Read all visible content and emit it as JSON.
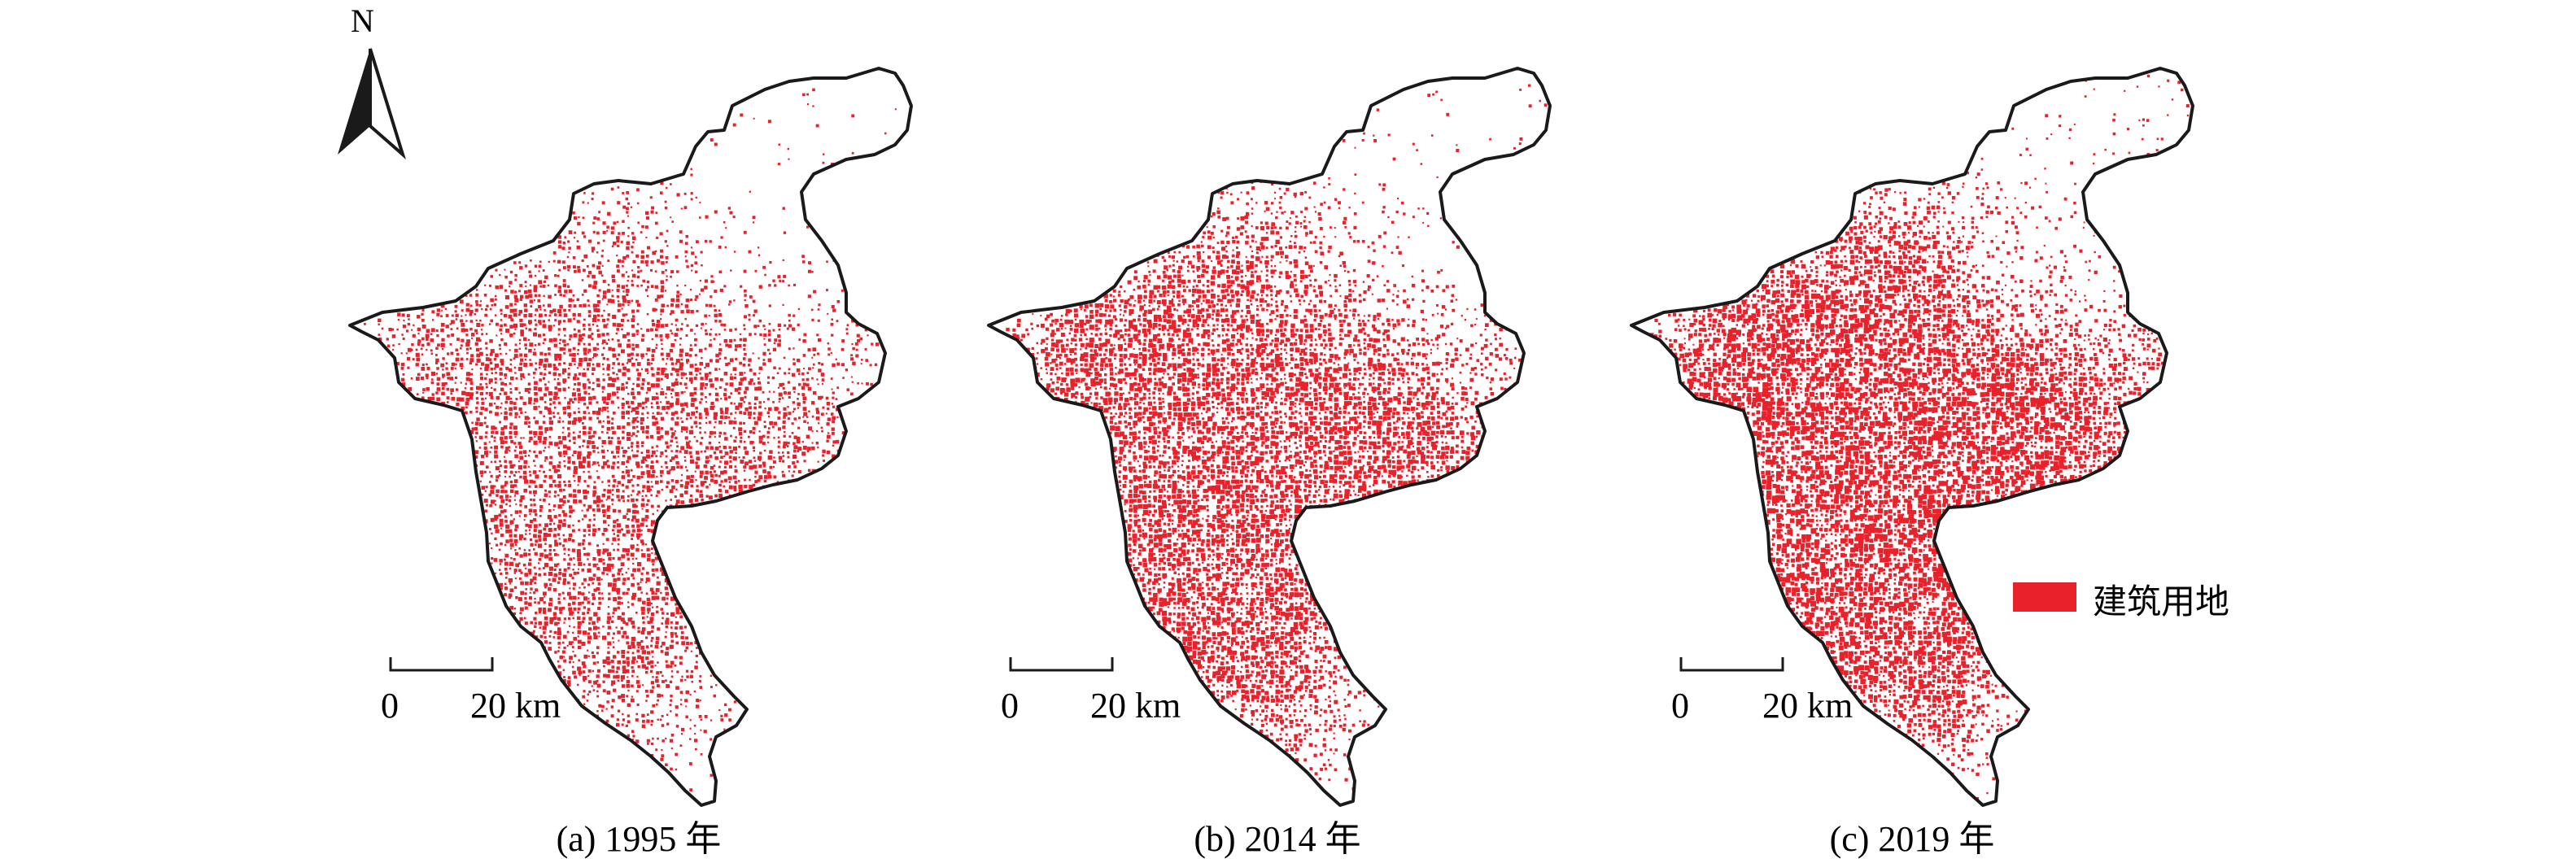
{
  "figure": {
    "north_arrow": {
      "label": "N",
      "icon": "north-arrow-icon"
    },
    "accent_color": "#e8212b",
    "outline_color": "#1a1a1a",
    "legend": {
      "label": "建筑用地",
      "color": "#e8212b"
    },
    "scale_bar": {
      "start": "0",
      "end": "20 km"
    },
    "panels": [
      {
        "id": "a",
        "caption": "(a) 1995 年",
        "year": "1995",
        "density": 0.45
      },
      {
        "id": "b",
        "caption": "(b) 2014 年",
        "year": "2014",
        "density": 0.75
      },
      {
        "id": "c",
        "caption": "(c) 2019 年",
        "year": "2019",
        "density": 1.0
      }
    ]
  }
}
